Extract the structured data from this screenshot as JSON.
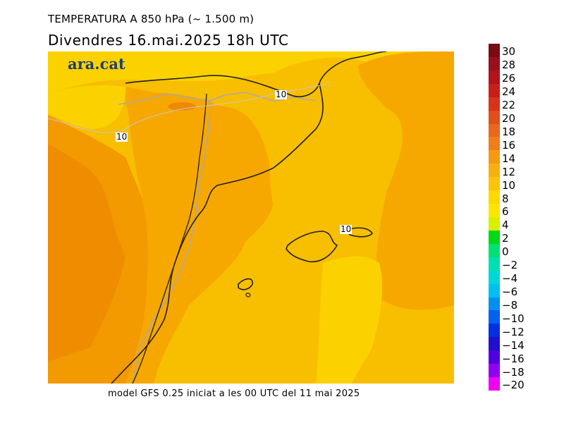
{
  "header": {
    "title": "TEMPERATURA A 850 hPa (~ 1.500 m)",
    "subtitle": "Divendres  16.mai.2025 18h UTC"
  },
  "logo": {
    "text": "ara.cat"
  },
  "contour_labels": [
    "10",
    "10",
    "10"
  ],
  "footer": {
    "text": "model GFS 0.25 iniciat a les 00 UTC del 11 mai 2025"
  },
  "colorbar": {
    "labels": [
      "30",
      "28",
      "26",
      "24",
      "22",
      "20",
      "18",
      "16",
      "14",
      "12",
      "10",
      "8",
      "6",
      "4",
      "2",
      "0",
      "−2",
      "−4",
      "−6",
      "−8",
      "−10",
      "−12",
      "−14",
      "−16",
      "−18",
      "−20"
    ],
    "colors": [
      "#7a0a14",
      "#98101c",
      "#b2141c",
      "#c82018",
      "#d8341c",
      "#e0501c",
      "#e8681c",
      "#f07e1c",
      "#f59a14",
      "#f8b010",
      "#fbc408",
      "#fcd804",
      "#fce600",
      "#d8f000",
      "#00d818",
      "#00e070",
      "#00e0b0",
      "#00d8d8",
      "#00c0f0",
      "#0090f0",
      "#0060f0",
      "#0030e0",
      "#2010d0",
      "#5000e0",
      "#9000f0",
      "#f000f0"
    ],
    "value_range": [
      -20,
      30
    ]
  },
  "map_colors": {
    "sea_8_10": "#fbd200",
    "land_10_12": "#f8be00",
    "land_12_14": "#f6a800",
    "land_14_16": "#f39a00",
    "coast": "#202020",
    "border": "#aaaaaa"
  }
}
